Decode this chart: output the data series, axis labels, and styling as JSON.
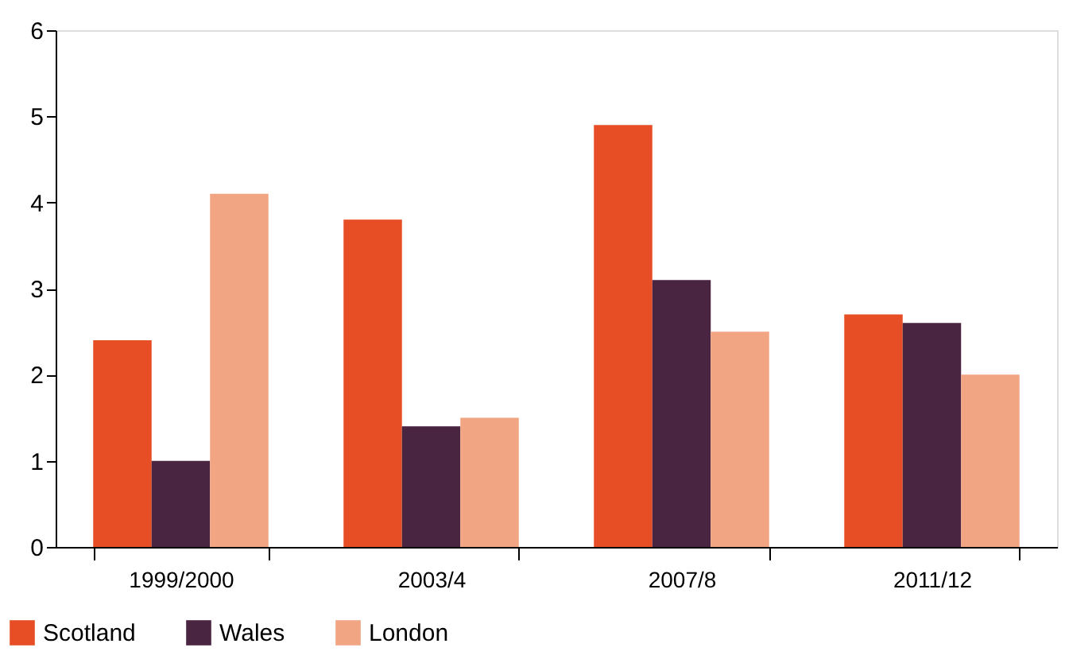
{
  "chart_data": {
    "type": "bar",
    "categories": [
      "1999/2000",
      "2003/4",
      "2007/8",
      "2011/12"
    ],
    "series": [
      {
        "name": "Scotland",
        "color": "#e84e26",
        "values": [
          2.4,
          3.8,
          4.9,
          2.7
        ]
      },
      {
        "name": "Wales",
        "color": "#4a2541",
        "values": [
          1.0,
          1.4,
          3.1,
          2.6
        ]
      },
      {
        "name": "London",
        "color": "#f2a582",
        "values": [
          4.1,
          1.5,
          2.5,
          2.0
        ]
      }
    ],
    "ylim": [
      0,
      6
    ],
    "yticks": [
      0,
      1,
      2,
      3,
      4,
      5,
      6
    ],
    "grid": false,
    "legend": "bottom left"
  }
}
